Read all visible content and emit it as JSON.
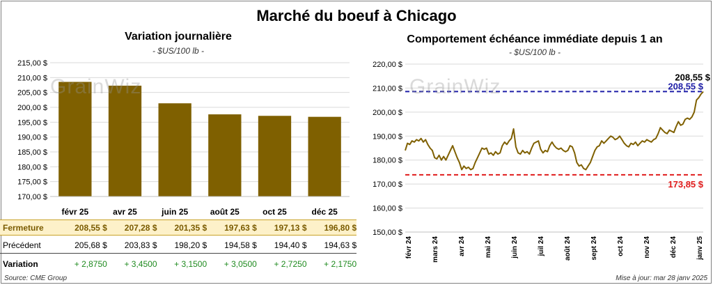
{
  "title": "Marché du boeuf à Chicago",
  "left_panel": {
    "title": "Variation journalière",
    "unit": "- $US/100 lb -",
    "watermark": "GrainWiz"
  },
  "right_panel": {
    "title": "Comportement échéance immédiate depuis 1 an",
    "unit": "- $US/100 lb -",
    "watermark": "GrainWiz"
  },
  "table": {
    "rows": [
      {
        "label": "Fermeture",
        "values": [
          "208,55 $",
          "207,28 $",
          "201,35 $",
          "197,63 $",
          "197,13 $",
          "196,80 $"
        ]
      },
      {
        "label": "Précédent",
        "values": [
          "205,68 $",
          "203,83 $",
          "198,20 $",
          "194,58 $",
          "194,40 $",
          "194,63 $"
        ]
      },
      {
        "label": "Variation",
        "values": [
          "+ 2,8750",
          "+ 3,4500",
          "+ 3,1500",
          "+ 3,0500",
          "+ 2,7250",
          "+ 2,1750"
        ]
      }
    ]
  },
  "footer": {
    "source": "Source: CME Group",
    "updated": "Mise à jour: mar 28 janv 2025"
  },
  "colors": {
    "bar": "#7f6000",
    "line": "#7f6000",
    "max_line": "#1f1fa8",
    "min_line": "#e01b1b",
    "gain": "#1e8a1e"
  },
  "chart_data": [
    {
      "type": "bar",
      "categories": [
        "févr 25",
        "avr 25",
        "juin 25",
        "août 25",
        "oct 25",
        "déc 25"
      ],
      "values": [
        208.55,
        207.28,
        201.35,
        197.63,
        197.13,
        196.8
      ],
      "ylim": [
        170,
        215
      ],
      "yticks": [
        170,
        175,
        180,
        185,
        190,
        195,
        200,
        205,
        210,
        215
      ],
      "ytick_labels": [
        "170,00 $",
        "175,00 $",
        "180,00 $",
        "185,00 $",
        "190,00 $",
        "195,00 $",
        "200,00 $",
        "205,00 $",
        "210,00 $",
        "215,00 $"
      ],
      "grid": true
    },
    {
      "type": "line",
      "xlabels": [
        "févr 24",
        "mars 24",
        "avr 24",
        "mai 24",
        "juin 24",
        "juil 24",
        "août 24",
        "sept 24",
        "oct 24",
        "nov 24",
        "déc 24",
        "janv 25"
      ],
      "ylim": [
        150,
        220
      ],
      "yticks": [
        150,
        160,
        170,
        180,
        190,
        200,
        210,
        220
      ],
      "ytick_labels": [
        "150,00 $",
        "160,00 $",
        "170,00 $",
        "180,00 $",
        "190,00 $",
        "200,00 $",
        "210,00 $",
        "220,00 $"
      ],
      "grid": true,
      "series": [
        {
          "values": [
            184,
            187,
            186.5,
            188,
            187.5,
            188.5,
            188,
            189,
            187.5,
            188.5,
            186.5,
            185,
            184,
            181,
            180.5,
            182,
            180,
            181.5,
            180,
            182,
            184,
            186,
            183.5,
            181,
            179,
            176,
            177.5,
            176.5,
            177,
            176,
            176.5,
            179,
            181,
            183,
            185,
            184.5,
            185,
            182.5,
            183,
            182,
            183.5,
            182.5,
            183,
            186,
            187.5,
            186.5,
            188,
            189,
            193,
            185.5,
            183,
            182.5,
            184,
            183,
            183.5,
            182.5,
            185,
            187,
            187.5,
            188,
            184.5,
            183,
            184,
            183.5,
            186,
            187.5,
            186,
            185,
            184.5,
            185,
            184,
            183.5,
            184,
            186,
            185.5,
            183,
            179,
            177.5,
            178,
            176.5,
            176,
            177.5,
            179,
            181.5,
            184,
            185.5,
            186,
            188,
            187,
            188,
            189,
            190,
            189.5,
            188.5,
            189,
            190,
            188.5,
            187,
            186,
            185.5,
            187,
            186.5,
            187.5,
            186,
            187,
            188,
            187.5,
            188.5,
            188,
            187.5,
            188.5,
            189,
            191,
            193.5,
            192.5,
            191.5,
            191,
            192.5,
            192,
            191.5,
            194,
            196,
            194.5,
            195,
            197,
            197.5,
            197,
            198,
            200,
            205,
            206,
            207.5,
            208.55
          ]
        }
      ],
      "max": {
        "value": 208.55,
        "label": "208,55 $"
      },
      "min": {
        "value": 173.85,
        "label": "173,85 $"
      },
      "last_label": "208,55 $"
    }
  ]
}
